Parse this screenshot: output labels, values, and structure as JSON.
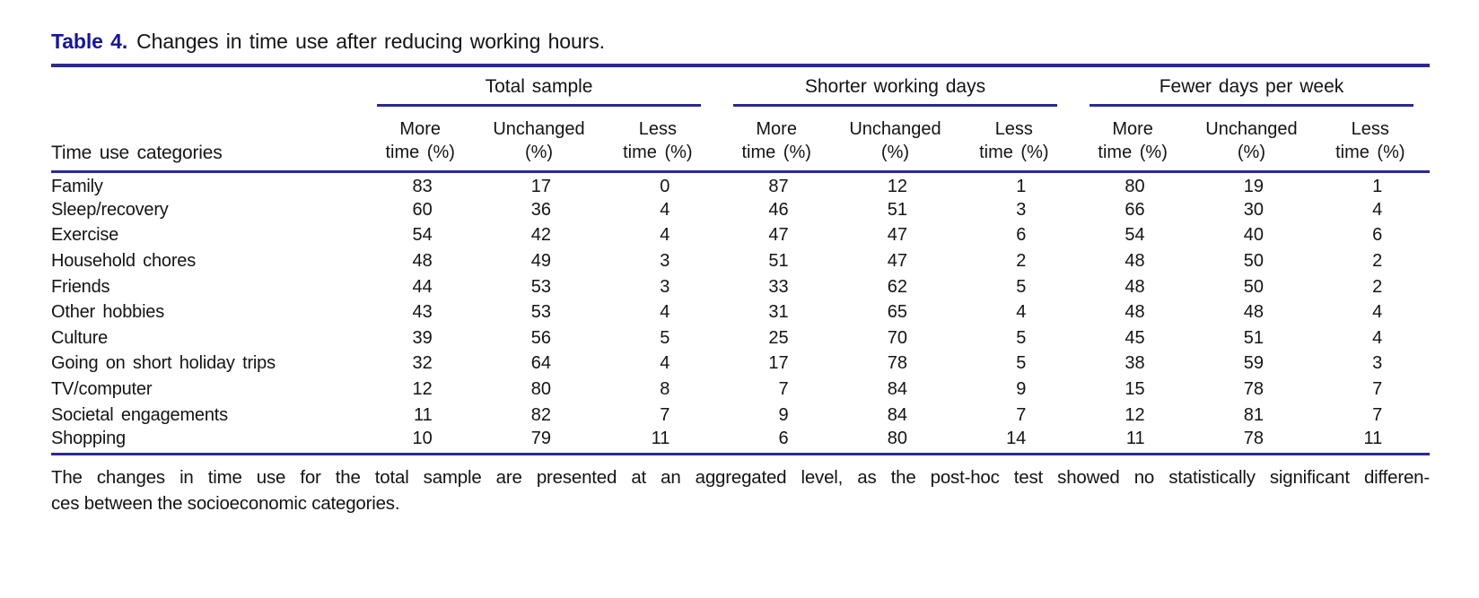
{
  "title": {
    "label": "Table 4.",
    "text": "Changes in time use after reducing working hours."
  },
  "colors": {
    "rule_navy": "#2a2a91",
    "title_blue": "#15159b",
    "body_text": "#141414"
  },
  "table": {
    "row_header": "Time use categories",
    "groups": [
      {
        "label": "Total sample"
      },
      {
        "label": "Shorter working days"
      },
      {
        "label": "Fewer days per week"
      }
    ],
    "subcols": [
      {
        "line1": "More",
        "line2": "time (%)"
      },
      {
        "line1": "Unchanged",
        "line2": "(%)"
      },
      {
        "line1": "Less",
        "line2": "time (%)"
      }
    ],
    "rows": [
      {
        "category": "Family",
        "values": [
          83,
          17,
          0,
          87,
          12,
          1,
          80,
          19,
          1
        ]
      },
      {
        "category": "Sleep/recovery",
        "values": [
          60,
          36,
          4,
          46,
          51,
          3,
          66,
          30,
          4
        ]
      },
      {
        "category": "Exercise",
        "values": [
          54,
          42,
          4,
          47,
          47,
          6,
          54,
          40,
          6
        ]
      },
      {
        "category": "Household chores",
        "values": [
          48,
          49,
          3,
          51,
          47,
          2,
          48,
          50,
          2
        ]
      },
      {
        "category": "Friends",
        "values": [
          44,
          53,
          3,
          33,
          62,
          5,
          48,
          50,
          2
        ]
      },
      {
        "category": "Other hobbies",
        "values": [
          43,
          53,
          4,
          31,
          65,
          4,
          48,
          48,
          4
        ]
      },
      {
        "category": "Culture",
        "values": [
          39,
          56,
          5,
          25,
          70,
          5,
          45,
          51,
          4
        ]
      },
      {
        "category": "Going on short holiday trips",
        "values": [
          32,
          64,
          4,
          17,
          78,
          5,
          38,
          59,
          3
        ]
      },
      {
        "category": "TV/computer",
        "values": [
          12,
          80,
          8,
          7,
          84,
          9,
          15,
          78,
          7
        ]
      },
      {
        "category": "Societal engagements",
        "values": [
          11,
          82,
          7,
          9,
          84,
          7,
          12,
          81,
          7
        ]
      },
      {
        "category": "Shopping",
        "values": [
          10,
          79,
          11,
          6,
          80,
          14,
          11,
          78,
          11
        ]
      }
    ],
    "footnote_line1": "The changes in time use for the total sample are presented at an aggregated level, as the post-hoc test showed no statistically significant differen-",
    "footnote_line2": "ces between the socioeconomic categories."
  }
}
